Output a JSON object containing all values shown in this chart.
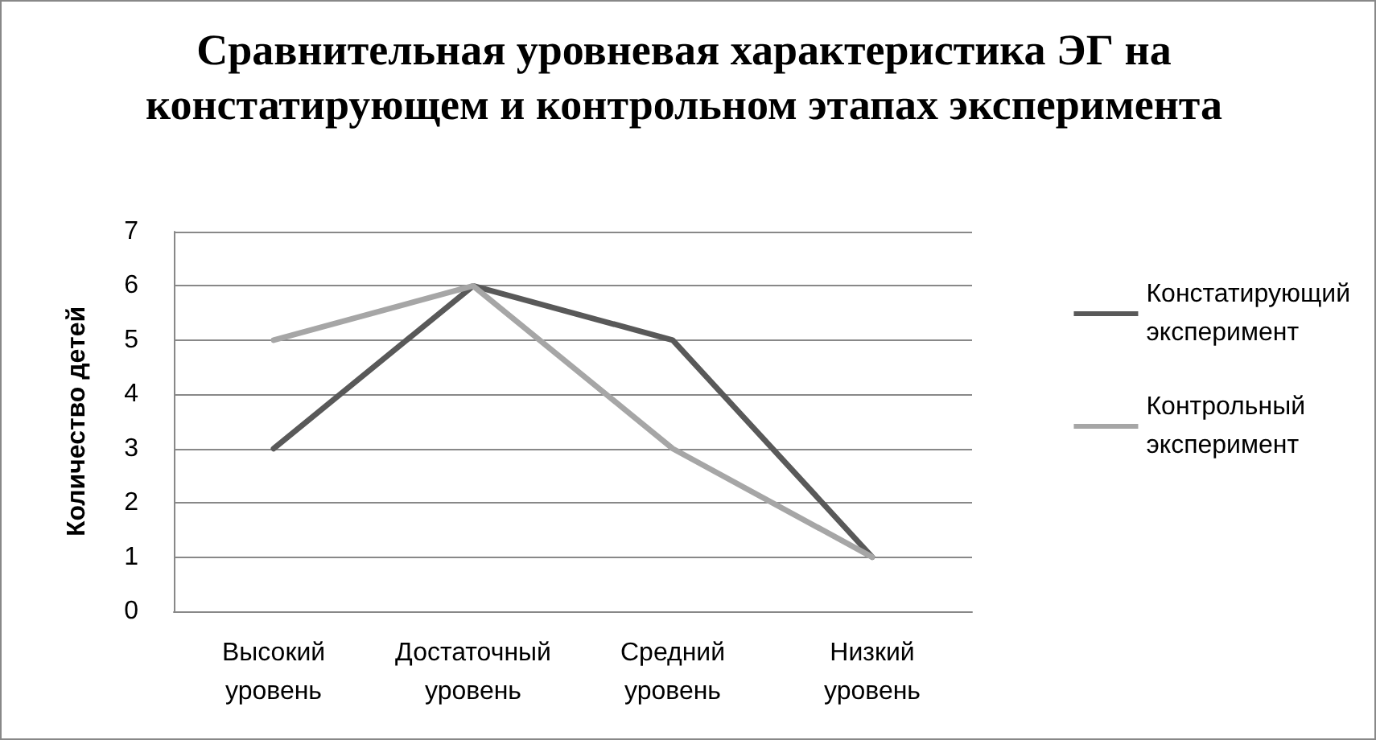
{
  "chart_data": {
    "type": "line",
    "title": "Сравнительная уровневая характеристика ЭГ на констатирующем и контрольном этапах эксперимента",
    "ylabel": "Количество детей",
    "categories": [
      "Высокий уровень",
      "Достаточный уровень",
      "Средний уровень",
      "Низкий уровень"
    ],
    "series": [
      {
        "name": "Констатирующий эксперимент",
        "color": "#595959",
        "values": [
          3,
          6,
          5,
          1
        ]
      },
      {
        "name": "Контрольный эксперимент",
        "color": "#a6a6a6",
        "values": [
          5,
          6,
          3,
          1
        ]
      }
    ],
    "ylim": [
      0,
      7
    ],
    "yticks": [
      0,
      1,
      2,
      3,
      4,
      5,
      6,
      7
    ],
    "grid": "y",
    "legend": "right",
    "marker": "none",
    "line_style": "solid"
  }
}
